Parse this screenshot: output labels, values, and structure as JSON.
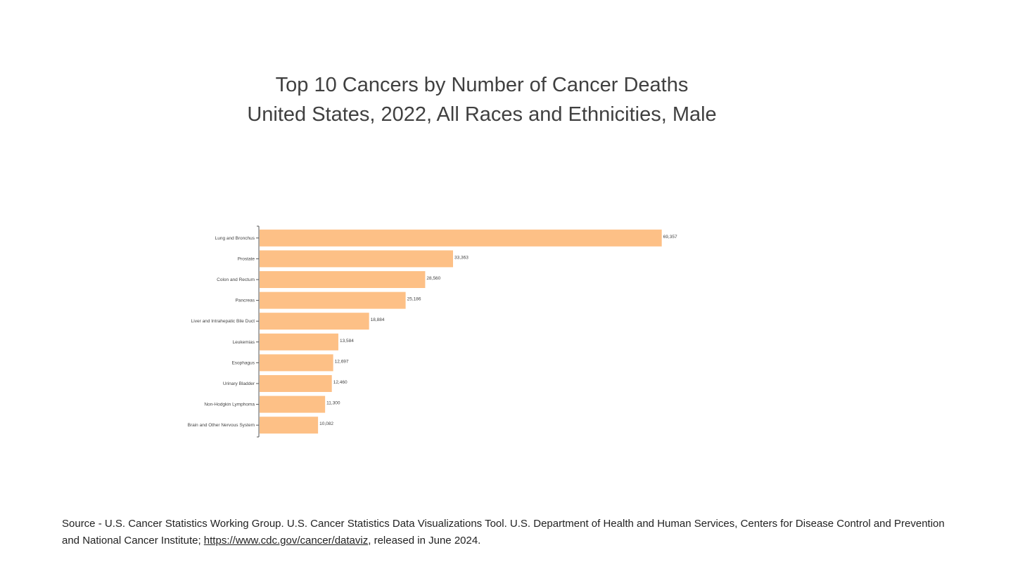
{
  "chart_data": {
    "type": "bar",
    "orientation": "horizontal",
    "title": "Top 10 Cancers by Number of Cancer Deaths",
    "subtitle": "United States, 2022, All Races and Ethnicities, Male",
    "categories": [
      "Lung and Bronchus",
      "Prostate",
      "Colon and Rectum",
      "Pancreas",
      "Liver and Intrahepatic Bile Duct",
      "Leukemias",
      "Esophagus",
      "Urinary Bladder",
      "Non-Hodgkin Lymphoma",
      "Brain and Other Nervous System"
    ],
    "values": [
      69357,
      33363,
      28560,
      25186,
      18884,
      13584,
      12697,
      12460,
      11300,
      10082
    ],
    "data_labels": [
      "69,357",
      "33,363",
      "28,560",
      "25,186",
      "18,884",
      "13,584",
      "12,697",
      "12,460",
      "11,300",
      "10,082"
    ],
    "bar_color": "#FDC086",
    "xlabel": "",
    "ylabel": "",
    "grid": false,
    "legend": "none"
  },
  "source": {
    "text_before": "Source - U.S. Cancer Statistics Working Group. U.S. Cancer Statistics Data Visualizations Tool. U.S. Department of Health and Human Services, Centers for Disease Control and Prevention and National Cancer Institute; ",
    "link": "https://www.cdc.gov/cancer/dataviz",
    "text_after": ", released in June 2024."
  }
}
